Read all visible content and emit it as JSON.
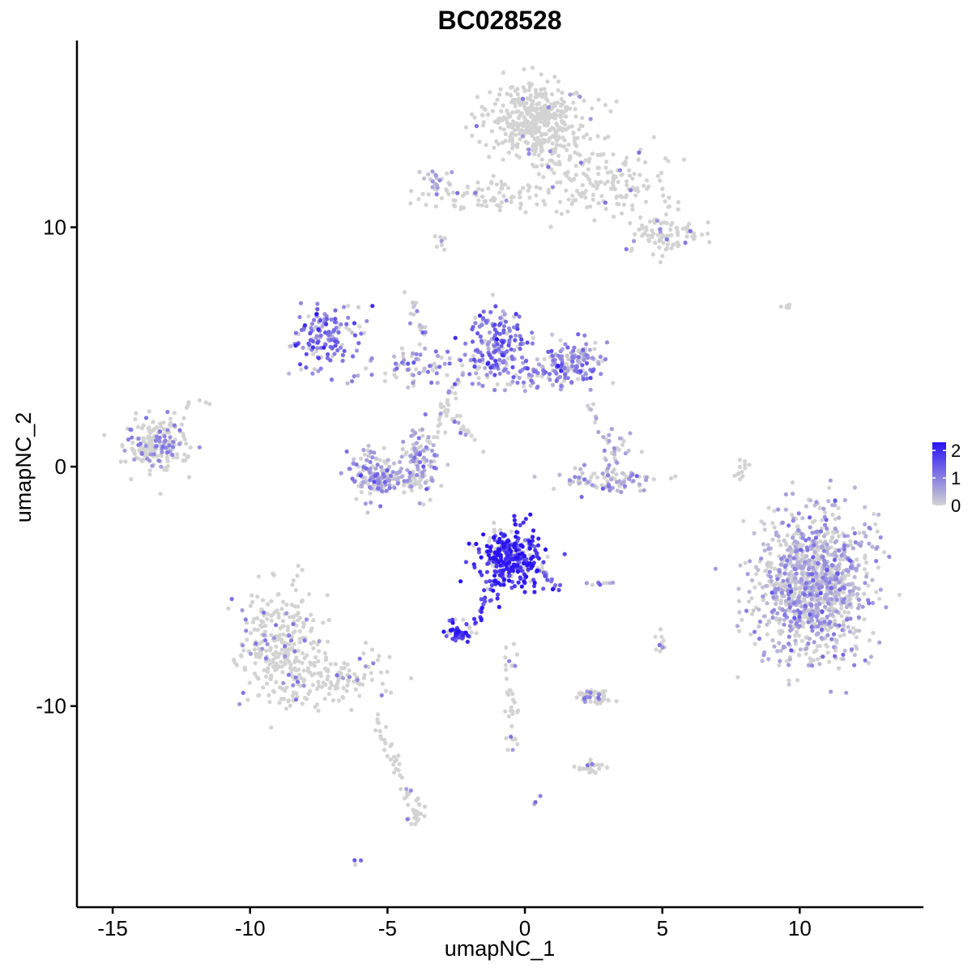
{
  "chart_data": {
    "type": "scatter",
    "title": "BC028528",
    "xlabel": "umapNC_1",
    "ylabel": "umapNC_2",
    "xlim": [
      -16.3,
      14.5
    ],
    "ylim": [
      -18.4,
      17.8
    ],
    "x_ticks": [
      -15,
      -10,
      -5,
      0,
      5,
      10
    ],
    "x_tick_labels": [
      "-15",
      "-10",
      "-5",
      "0",
      "5",
      "10"
    ],
    "y_ticks": [
      -10,
      0,
      10
    ],
    "y_tick_labels": [
      "-10",
      "0",
      "10"
    ],
    "grid": false,
    "legend_position": "right",
    "color_scale": {
      "low_color": "#d3d3d3",
      "high_color": "#2a13f5",
      "min": 0,
      "max": 2.3,
      "ticks": [
        0,
        1,
        2
      ],
      "tick_labels": [
        "0",
        "1",
        "2"
      ]
    },
    "clusters": [
      {
        "cx": 0.4,
        "cy": 14.5,
        "sx": 0.9,
        "sy": 0.8,
        "n": 420,
        "mean": 0.02
      },
      {
        "cx": 2.8,
        "cy": 12.0,
        "sx": 1.2,
        "sy": 0.8,
        "n": 160,
        "mean": 0.03
      },
      {
        "cx": -1.4,
        "cy": 11.3,
        "sx": 1.2,
        "sy": 0.35,
        "n": 90,
        "mean": 0.05
      },
      {
        "cx": 5.0,
        "cy": 9.6,
        "sx": 0.7,
        "sy": 0.45,
        "n": 90,
        "mean": 0.05
      },
      {
        "cx": -7.3,
        "cy": 5.5,
        "sx": 0.6,
        "sy": 0.65,
        "n": 140,
        "mean": 1.1
      },
      {
        "cx": -1.0,
        "cy": 5.3,
        "sx": 0.5,
        "sy": 0.6,
        "n": 130,
        "mean": 1.1
      },
      {
        "cx": -0.3,
        "cy": 3.9,
        "sx": 1.3,
        "sy": 0.5,
        "n": 120,
        "mean": 0.85
      },
      {
        "cx": 1.8,
        "cy": 4.3,
        "sx": 0.6,
        "sy": 0.5,
        "n": 120,
        "mean": 0.9
      },
      {
        "cx": -4.0,
        "cy": 4.1,
        "sx": 1.3,
        "sy": 0.35,
        "n": 70,
        "mean": 0.65
      },
      {
        "cx": -5.5,
        "cy": -0.3,
        "sx": 0.45,
        "sy": 0.5,
        "n": 120,
        "mean": 0.55
      },
      {
        "cx": -3.8,
        "cy": 0.2,
        "sx": 0.35,
        "sy": 0.7,
        "n": 100,
        "mean": 0.55
      },
      {
        "cx": -4.7,
        "cy": -0.6,
        "sx": 0.6,
        "sy": 0.25,
        "n": 60,
        "mean": 0.5
      },
      {
        "cx": -13.4,
        "cy": 1.0,
        "sx": 0.6,
        "sy": 0.55,
        "n": 200,
        "mean": 0.15
      },
      {
        "cx": 3.0,
        "cy": -0.5,
        "sx": 0.9,
        "sy": 0.3,
        "n": 90,
        "mean": 0.35
      },
      {
        "cx": 3.2,
        "cy": 0.9,
        "sx": 0.25,
        "sy": 0.5,
        "n": 25,
        "mean": 0.6
      },
      {
        "cx": -0.5,
        "cy": -3.8,
        "sx": 0.55,
        "sy": 0.6,
        "n": 320,
        "mean": 2.0
      },
      {
        "cx": -2.4,
        "cy": -6.9,
        "sx": 0.25,
        "sy": 0.2,
        "n": 50,
        "mean": 1.95
      },
      {
        "cx": 10.5,
        "cy": -5.0,
        "sx": 1.0,
        "sy": 1.55,
        "n": 1100,
        "mean": 0.35
      },
      {
        "cx": -9.0,
        "cy": -7.4,
        "sx": 0.8,
        "sy": 1.25,
        "n": 280,
        "mean": 0.05
      },
      {
        "cx": -7.0,
        "cy": -8.8,
        "sx": 1.2,
        "sy": 0.55,
        "n": 120,
        "mean": 0.05
      },
      {
        "cx": 2.5,
        "cy": -9.6,
        "sx": 0.35,
        "sy": 0.18,
        "n": 50,
        "mean": 0.08
      },
      {
        "cx": 2.3,
        "cy": -12.5,
        "sx": 0.3,
        "sy": 0.15,
        "n": 22,
        "mean": 0.05
      },
      {
        "cx": -4.0,
        "cy": -14.4,
        "sx": 0.15,
        "sy": 0.3,
        "n": 28,
        "mean": 0.03
      },
      {
        "cx": 2.8,
        "cy": -4.9,
        "sx": 0.25,
        "sy": 0.08,
        "n": 10,
        "mean": 0.6
      },
      {
        "cx": 5.0,
        "cy": -7.4,
        "sx": 0.1,
        "sy": 0.3,
        "n": 12,
        "mean": 0.1
      },
      {
        "cx": 9.5,
        "cy": 6.7,
        "sx": 0.15,
        "sy": 0.05,
        "n": 5,
        "mean": 0.05
      },
      {
        "cx": -3.0,
        "cy": 11.9,
        "sx": 0.3,
        "sy": 0.3,
        "n": 20,
        "mean": 0.35
      }
    ],
    "paths": [
      {
        "from": [
          -0.8,
          -4.3
        ],
        "to": [
          -1.8,
          -6.5
        ],
        "n": 30,
        "mean": 1.8
      },
      {
        "from": [
          0.6,
          -4.2
        ],
        "to": [
          1.2,
          -5.3
        ],
        "n": 18,
        "mean": 1.4
      },
      {
        "from": [
          -0.6,
          -7.3
        ],
        "to": [
          -0.4,
          -12.0
        ],
        "n": 35,
        "mean": 0.1
      },
      {
        "from": [
          -5.5,
          -10.3
        ],
        "to": [
          -4.2,
          -14.0
        ],
        "n": 35,
        "mean": 0.02
      },
      {
        "from": [
          -2.5,
          3.5
        ],
        "to": [
          -3.6,
          0.5
        ],
        "n": 30,
        "mean": 0.15
      },
      {
        "from": [
          -4.2,
          7.3
        ],
        "to": [
          -3.5,
          4.5
        ],
        "n": 20,
        "mean": 0.3
      },
      {
        "from": [
          -3.0,
          2.5
        ],
        "to": [
          -1.5,
          0.8
        ],
        "n": 20,
        "mean": 0.1
      },
      {
        "from": [
          8.0,
          0.5
        ],
        "to": [
          7.8,
          -0.5
        ],
        "n": 12,
        "mean": 0.02
      },
      {
        "from": [
          -3.3,
          9.0
        ],
        "to": [
          -3.0,
          9.5
        ],
        "n": 8,
        "mean": 0.1
      },
      {
        "from": [
          2.4,
          3.2
        ],
        "to": [
          2.6,
          1.3
        ],
        "n": 10,
        "mean": 0.2
      },
      {
        "from": [
          -12.5,
          2.5
        ],
        "to": [
          -11.5,
          2.8
        ],
        "n": 6,
        "mean": 0.05
      },
      {
        "from": [
          -6.0,
          -16.4
        ],
        "to": [
          -6.1,
          -16.5
        ],
        "n": 3,
        "mean": 1.5
      },
      {
        "from": [
          0.6,
          -14.0
        ],
        "to": [
          0.55,
          -13.95
        ],
        "n": 3,
        "mean": 1.2
      }
    ]
  }
}
